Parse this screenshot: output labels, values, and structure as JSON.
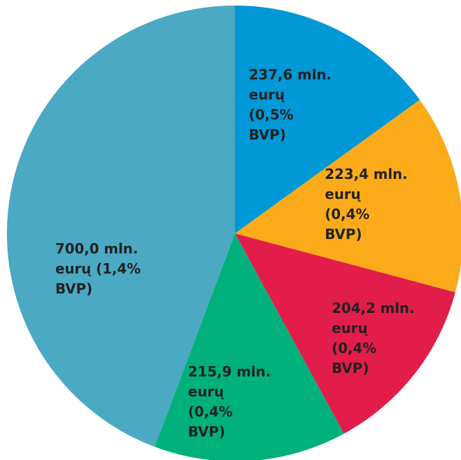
{
  "chart_data": {
    "type": "pie",
    "values": [
      237.6,
      223.4,
      204.2,
      215.9,
      700.0
    ],
    "value_labels": [
      "237,6 mln. eurų (0,5% BVP)",
      "223,4 mln. eurų (0,4% BVP)",
      "204,2 mln. eurų (0,4% BVP)",
      "215,9 mln. eurų (0,4% BVP)",
      "700,0 mln. eurų (1,4% BVP)"
    ],
    "colors": [
      "#0098d6",
      "#fbaa19",
      "#e31d4a",
      "#00b07a",
      "#4ba9c4"
    ]
  }
}
